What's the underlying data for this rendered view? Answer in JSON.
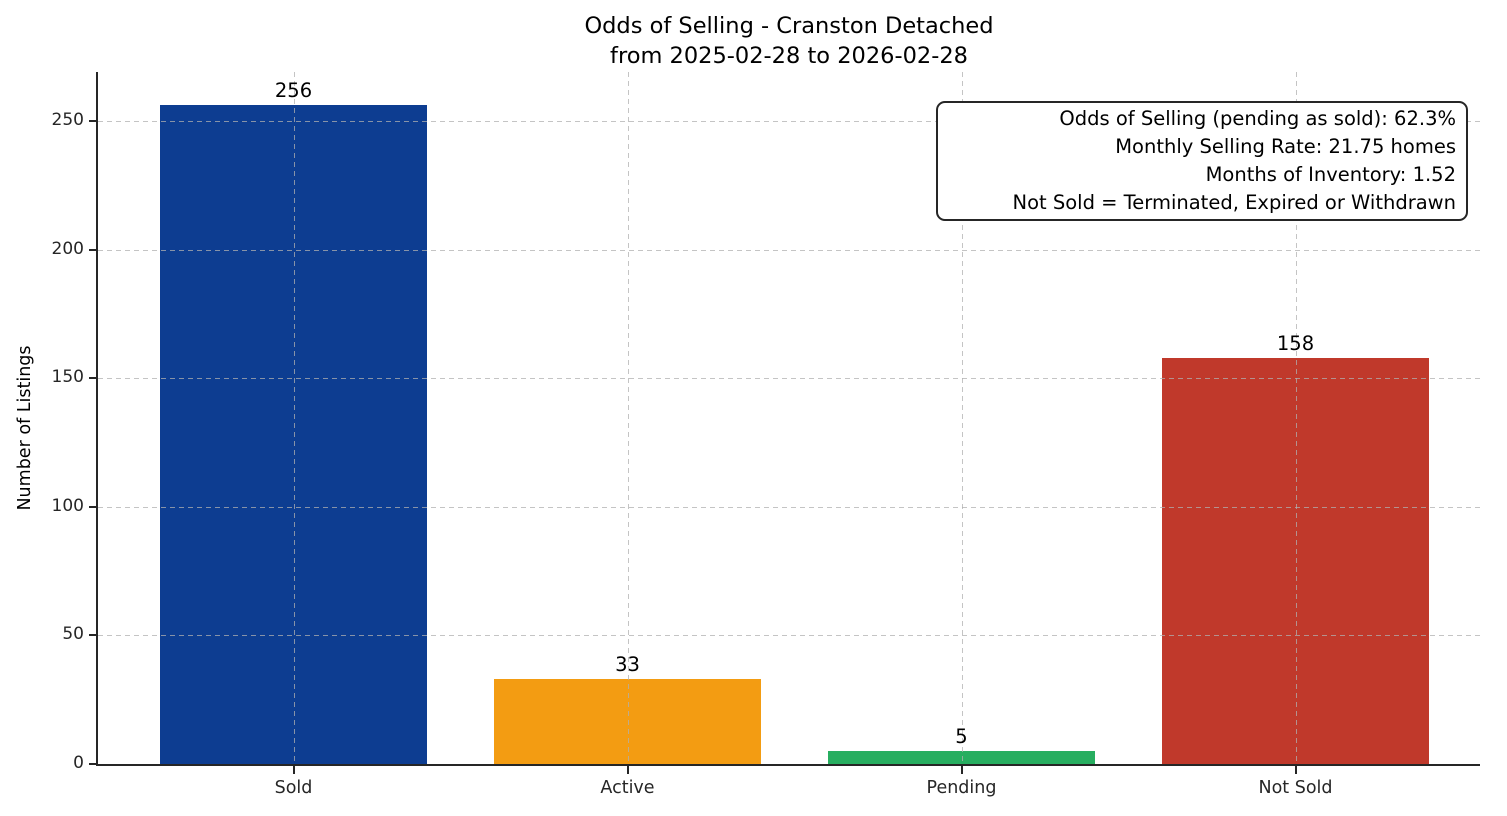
{
  "chart_data": {
    "type": "bar",
    "title": "Odds of Selling - Cranston Detached",
    "subtitle": "from 2025-02-28 to 2026-02-28",
    "categories": [
      "Sold",
      "Active",
      "Pending",
      "Not Sold"
    ],
    "values": [
      256,
      33,
      5,
      158
    ],
    "bar_colors": [
      "#0d3d91",
      "#f39c12",
      "#27ae60",
      "#c0392b"
    ],
    "xlabel": "",
    "ylabel": "Number of Listings",
    "ylim": [
      0,
      269
    ],
    "yticks": [
      0,
      50,
      100,
      150,
      200,
      250
    ],
    "grid": true,
    "grid_style": "dashed",
    "grid_color": "#b0b0b0",
    "axis_color": "#262626",
    "annotation_box": {
      "position": "top-right",
      "lines": [
        "Odds of Selling (pending as sold): 62.3%",
        "Monthly Selling Rate: 21.75 homes",
        "Months of Inventory: 1.52",
        "Not Sold = Terminated, Expired or Withdrawn"
      ]
    }
  }
}
